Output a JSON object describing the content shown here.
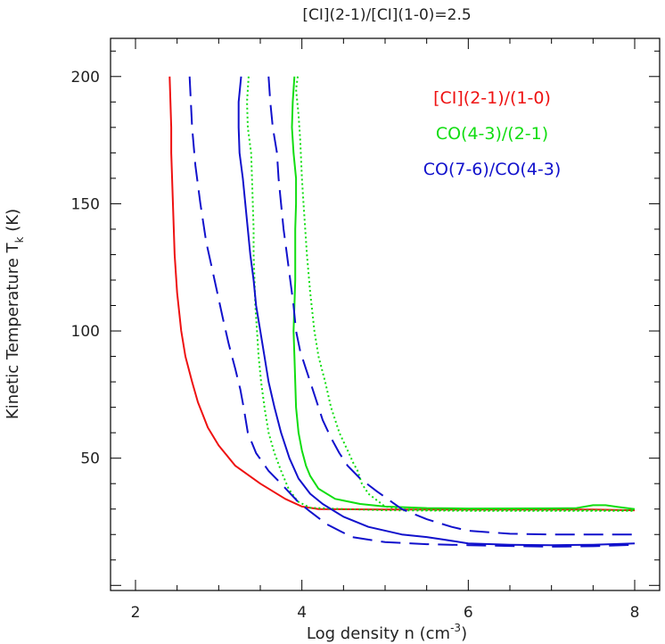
{
  "chart_data": {
    "type": "line",
    "title": "[CI](2-1)/[CI](1-0)=2.5",
    "xlabel": "Log density n (cm",
    "xlabel_sup": "-3",
    "xlabel_end": ")",
    "ylabel": "Kinetic Temperature T",
    "ylabel_sub": "k",
    "ylabel_end": " (K)",
    "xlim": [
      1.7,
      8.3
    ],
    "ylim": [
      -2,
      215
    ],
    "xticks": [
      2,
      4,
      6,
      8
    ],
    "yticks": [
      50,
      100,
      150,
      200
    ],
    "xtick_labels": [
      "2",
      "4",
      "6",
      "8"
    ],
    "ytick_labels": [
      "50",
      "100",
      "150",
      "200"
    ],
    "grid": false,
    "legend_position": "top-right",
    "legend": [
      {
        "label": "[CI](2-1)/(1-0)",
        "color": "#ee1111"
      },
      {
        "label": "CO(4-3)/(2-1)",
        "color": "#11dd11"
      },
      {
        "label": "CO(7-6)/CO(4-3)",
        "color": "#1111cc"
      }
    ],
    "series": [
      {
        "color": "#ee1111",
        "style": "solid",
        "points": [
          [
            2.41,
            200
          ],
          [
            2.42,
            190
          ],
          [
            2.43,
            180
          ],
          [
            2.43,
            170
          ],
          [
            2.45,
            150
          ],
          [
            2.47,
            130
          ],
          [
            2.5,
            115
          ],
          [
            2.55,
            100
          ],
          [
            2.6,
            90
          ],
          [
            2.68,
            80
          ],
          [
            2.75,
            72
          ],
          [
            2.87,
            62
          ],
          [
            3.0,
            55
          ],
          [
            3.2,
            47
          ],
          [
            3.5,
            40
          ],
          [
            3.8,
            34
          ],
          [
            4.0,
            31
          ],
          [
            4.2,
            30
          ],
          [
            5.0,
            29.8
          ],
          [
            6.0,
            29.8
          ],
          [
            7.0,
            29.8
          ],
          [
            7.5,
            29.8
          ],
          [
            8.0,
            29.5
          ]
        ]
      },
      {
        "color": "#11dd11",
        "style": "solid",
        "points": [
          [
            3.91,
            200
          ],
          [
            3.89,
            190
          ],
          [
            3.88,
            180
          ],
          [
            3.9,
            170
          ],
          [
            3.93,
            160
          ],
          [
            3.93,
            150
          ],
          [
            3.92,
            140
          ],
          [
            3.92,
            130
          ],
          [
            3.92,
            120
          ],
          [
            3.91,
            110
          ],
          [
            3.9,
            100
          ],
          [
            3.91,
            90
          ],
          [
            3.92,
            80
          ],
          [
            3.93,
            70
          ],
          [
            3.96,
            60
          ],
          [
            4.0,
            53
          ],
          [
            4.05,
            47
          ],
          [
            4.1,
            43
          ],
          [
            4.2,
            38
          ],
          [
            4.4,
            34
          ],
          [
            4.7,
            32
          ],
          [
            5.0,
            31
          ],
          [
            5.5,
            30.4
          ],
          [
            6.0,
            30.2
          ],
          [
            7.0,
            30.3
          ],
          [
            7.3,
            30.4
          ],
          [
            7.5,
            31.5
          ],
          [
            7.65,
            31.5
          ],
          [
            7.8,
            30.8
          ],
          [
            8.0,
            30
          ]
        ]
      },
      {
        "color": "#11dd11",
        "style": "dotted",
        "points": [
          [
            3.36,
            200
          ],
          [
            3.34,
            190
          ],
          [
            3.35,
            180
          ],
          [
            3.39,
            170
          ],
          [
            3.4,
            160
          ],
          [
            3.41,
            150
          ],
          [
            3.42,
            140
          ],
          [
            3.42,
            130
          ],
          [
            3.43,
            120
          ],
          [
            3.44,
            110
          ],
          [
            3.46,
            100
          ],
          [
            3.48,
            90
          ],
          [
            3.51,
            80
          ],
          [
            3.55,
            70
          ],
          [
            3.6,
            60
          ],
          [
            3.67,
            52
          ],
          [
            3.75,
            45
          ],
          [
            3.84,
            38
          ],
          [
            3.95,
            33
          ],
          [
            4.1,
            30.5
          ],
          [
            4.5,
            30
          ],
          [
            5.0,
            29.5
          ],
          [
            6.0,
            29.3
          ],
          [
            7.0,
            29.3
          ],
          [
            8.0,
            29.3
          ]
        ]
      },
      {
        "color": "#11dd11",
        "style": "dotted",
        "points": [
          [
            3.95,
            200
          ],
          [
            3.93,
            195
          ],
          [
            3.96,
            185
          ],
          [
            3.98,
            175
          ],
          [
            4.0,
            160
          ],
          [
            4.02,
            150
          ],
          [
            4.04,
            140
          ],
          [
            4.06,
            130
          ],
          [
            4.1,
            115
          ],
          [
            4.15,
            100
          ],
          [
            4.2,
            90
          ],
          [
            4.28,
            80
          ],
          [
            4.35,
            70
          ],
          [
            4.45,
            60
          ],
          [
            4.55,
            53
          ],
          [
            4.62,
            48
          ],
          [
            4.67,
            45
          ],
          [
            4.72,
            40
          ],
          [
            4.8,
            36
          ],
          [
            5.0,
            31
          ],
          [
            5.2,
            30
          ],
          [
            5.5,
            29.6
          ],
          [
            6.0,
            29.5
          ],
          [
            7.0,
            29.5
          ],
          [
            8.0,
            29.5
          ]
        ]
      },
      {
        "color": "#1111cc",
        "style": "solid",
        "points": [
          [
            3.27,
            200
          ],
          [
            3.24,
            190
          ],
          [
            3.24,
            180
          ],
          [
            3.25,
            170
          ],
          [
            3.29,
            160
          ],
          [
            3.32,
            150
          ],
          [
            3.35,
            140
          ],
          [
            3.38,
            130
          ],
          [
            3.42,
            120
          ],
          [
            3.45,
            110
          ],
          [
            3.5,
            100
          ],
          [
            3.55,
            90
          ],
          [
            3.6,
            80
          ],
          [
            3.67,
            70
          ],
          [
            3.75,
            60
          ],
          [
            3.85,
            50
          ],
          [
            3.96,
            42
          ],
          [
            4.1,
            36
          ],
          [
            4.25,
            32
          ],
          [
            4.5,
            27
          ],
          [
            4.8,
            23
          ],
          [
            5.2,
            20
          ],
          [
            5.5,
            19
          ],
          [
            5.7,
            18
          ],
          [
            6.0,
            16.5
          ],
          [
            6.5,
            16
          ],
          [
            7.0,
            15.8
          ],
          [
            7.5,
            16
          ],
          [
            8.0,
            16.5
          ]
        ]
      },
      {
        "color": "#1111cc",
        "style": "dashed",
        "points": [
          [
            2.65,
            200
          ],
          [
            2.68,
            180
          ],
          [
            2.72,
            165
          ],
          [
            2.78,
            150
          ],
          [
            2.85,
            135
          ],
          [
            2.95,
            120
          ],
          [
            3.05,
            105
          ],
          [
            3.12,
            95
          ],
          [
            3.2,
            85
          ],
          [
            3.26,
            77
          ],
          [
            3.3,
            70
          ],
          [
            3.35,
            60
          ],
          [
            3.45,
            52
          ],
          [
            3.6,
            45
          ],
          [
            3.75,
            40
          ],
          [
            3.95,
            33
          ],
          [
            4.1,
            29
          ],
          [
            4.3,
            24
          ],
          [
            4.6,
            19
          ],
          [
            5.0,
            17
          ],
          [
            5.5,
            16.2
          ],
          [
            6.0,
            15.8
          ],
          [
            6.5,
            15.5
          ],
          [
            7.0,
            15.2
          ],
          [
            7.5,
            15.4
          ],
          [
            8.0,
            16
          ]
        ]
      },
      {
        "color": "#1111cc",
        "style": "dashed",
        "points": [
          [
            3.6,
            200
          ],
          [
            3.62,
            190
          ],
          [
            3.65,
            180
          ],
          [
            3.7,
            170
          ],
          [
            3.72,
            160
          ],
          [
            3.75,
            150
          ],
          [
            3.78,
            140
          ],
          [
            3.82,
            130
          ],
          [
            3.86,
            120
          ],
          [
            3.9,
            110
          ],
          [
            3.93,
            100
          ],
          [
            3.98,
            92
          ],
          [
            4.05,
            85
          ],
          [
            4.15,
            75
          ],
          [
            4.25,
            65
          ],
          [
            4.35,
            58
          ],
          [
            4.45,
            52
          ],
          [
            4.55,
            47
          ],
          [
            4.7,
            42
          ],
          [
            4.9,
            37
          ],
          [
            5.2,
            30
          ],
          [
            5.5,
            26
          ],
          [
            5.8,
            23
          ],
          [
            6.0,
            21.5
          ],
          [
            6.5,
            20.3
          ],
          [
            7.0,
            20
          ],
          [
            7.5,
            20
          ],
          [
            8.0,
            20
          ]
        ]
      }
    ]
  }
}
